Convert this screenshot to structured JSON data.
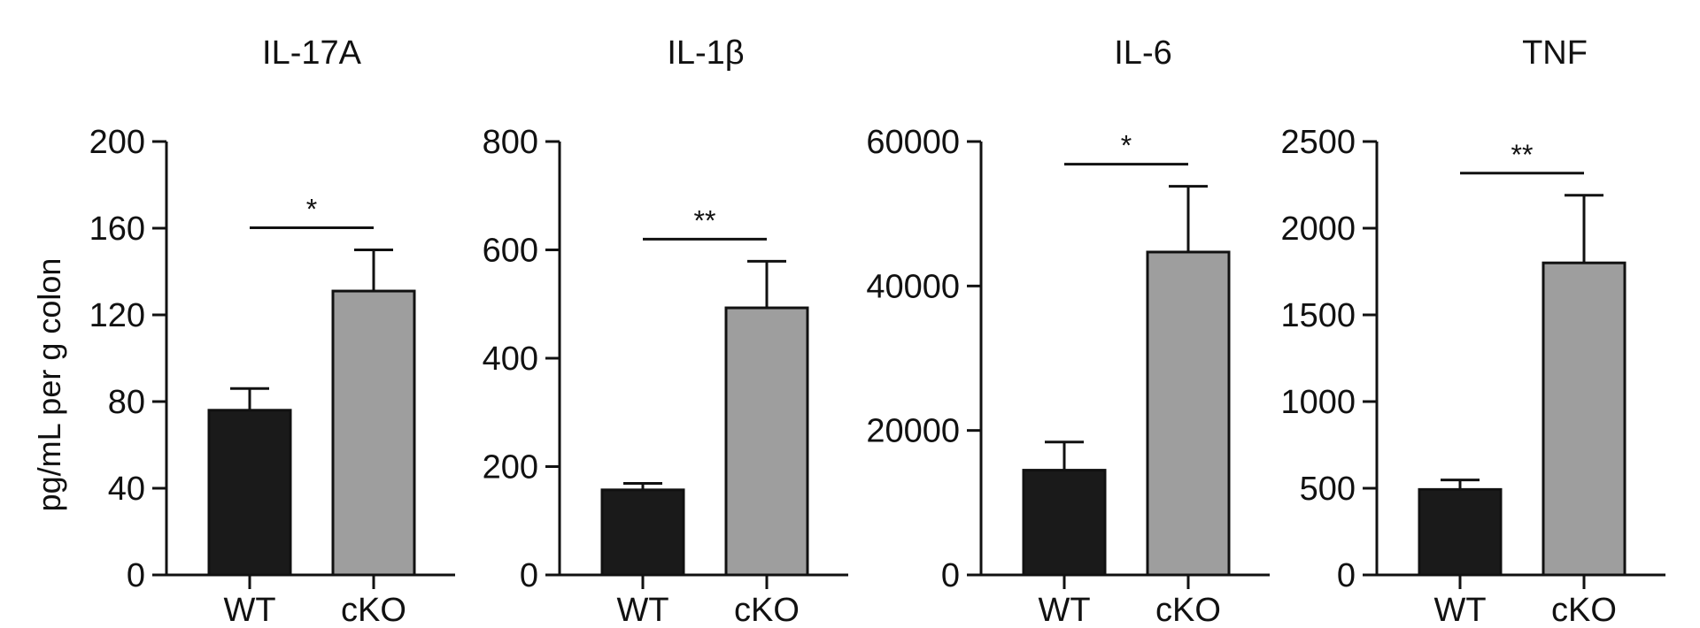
{
  "ylabel": "pg/mL per g colon",
  "styles": {
    "bar_colors": {
      "WT": "#1a1a1a",
      "cKO": "#9e9e9e"
    },
    "stroke_color": "#111111"
  },
  "chart_data": [
    {
      "type": "bar",
      "title": "IL-17A",
      "categories": [
        "WT",
        "cKO"
      ],
      "values": [
        76,
        131
      ],
      "errors": [
        10,
        19
      ],
      "ylim": [
        0,
        200
      ],
      "yticks": [
        "0",
        "40",
        "80",
        "120",
        "160",
        "200"
      ],
      "significance": "*"
    },
    {
      "type": "bar",
      "title": "IL-1β",
      "categories": [
        "WT",
        "cKO"
      ],
      "values": [
        157,
        493
      ],
      "errors": [
        12,
        86
      ],
      "ylim": [
        0,
        800
      ],
      "yticks": [
        "0",
        "200",
        "400",
        "600",
        "800"
      ],
      "significance": "**"
    },
    {
      "type": "bar",
      "title": "IL-6",
      "categories": [
        "WT",
        "cKO"
      ],
      "values": [
        14500,
        44700
      ],
      "errors": [
        3900,
        9100
      ],
      "ylim": [
        0,
        60000
      ],
      "yticks": [
        "0",
        "20000",
        "40000",
        "60000"
      ],
      "significance": "*"
    },
    {
      "type": "bar",
      "title": "TNF",
      "categories": [
        "WT",
        "cKO"
      ],
      "values": [
        493,
        1800
      ],
      "errors": [
        55,
        390
      ],
      "ylim": [
        0,
        2500
      ],
      "yticks": [
        "0",
        "500",
        "1000",
        "1500",
        "2000",
        "2500"
      ],
      "significance": "**"
    }
  ]
}
